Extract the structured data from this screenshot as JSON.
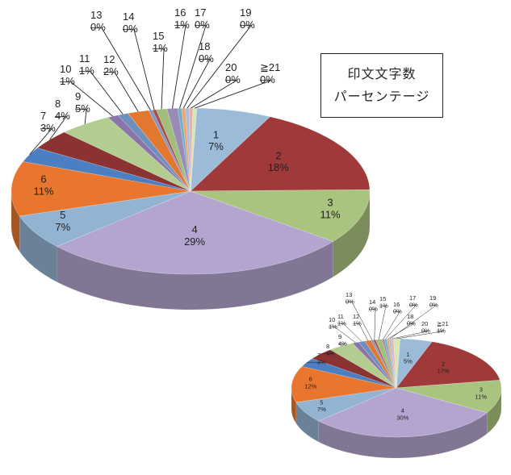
{
  "chart_data": [
    {
      "type": "pie",
      "title": "",
      "categories": [
        "1",
        "2",
        "3",
        "4",
        "5",
        "6",
        "7",
        "8",
        "9",
        "10",
        "11",
        "12",
        "13",
        "14",
        "15",
        "16",
        "17",
        "18",
        "19",
        "20",
        "≧21"
      ],
      "values": [
        7,
        18,
        11,
        29,
        7,
        11,
        3,
        4,
        5,
        1,
        1,
        2,
        0,
        0,
        1,
        1,
        0,
        0,
        0,
        0,
        0
      ],
      "value_labels": [
        "7%",
        "18%",
        "11%",
        "29%",
        "7%",
        "11%",
        "3%",
        "4%",
        "5%",
        "1%",
        "1%",
        "2%",
        "0%",
        "0%",
        "1%",
        "1%",
        "0%",
        "0%",
        "0%",
        "0%",
        "0%"
      ]
    },
    {
      "type": "pie",
      "title": "",
      "categories": [
        "1",
        "2",
        "3",
        "4",
        "5",
        "6",
        "7",
        "8",
        "9",
        "10",
        "11",
        "12",
        "13",
        "14",
        "15",
        "16",
        "17",
        "18",
        "19",
        "20",
        "≧21"
      ],
      "values": [
        5,
        17,
        11,
        30,
        7,
        12,
        3,
        4,
        4,
        1,
        1,
        1,
        0,
        0,
        1,
        0,
        0,
        0,
        0,
        0,
        1
      ],
      "value_labels": [
        "5%",
        "17%",
        "11%",
        "30%",
        "7%",
        "12%",
        "3%",
        "4%",
        "4%",
        "1%",
        "1%",
        "1%",
        "0%",
        "0%",
        "1%",
        "0%",
        "0%",
        "0%",
        "0%",
        "0%",
        "1%"
      ]
    }
  ],
  "legend_box": {
    "line1": "印文文字数",
    "line2": "パーセンテージ"
  },
  "colors": [
    "#9bbbd9",
    "#a0393a",
    "#a9c47f",
    "#b3a5cf",
    "#93b3d3",
    "#e8762e",
    "#4c7fc1",
    "#8b3233",
    "#b3cc8f",
    "#8a75a8",
    "#6d8fbf",
    "#e2782f",
    "#7d97c4",
    "#a84d4e",
    "#a2be7d",
    "#9a8ab6",
    "#6fb0c7",
    "#f0a36b",
    "#a6bde0",
    "#e7b1a9",
    "#d7e5b8"
  ]
}
